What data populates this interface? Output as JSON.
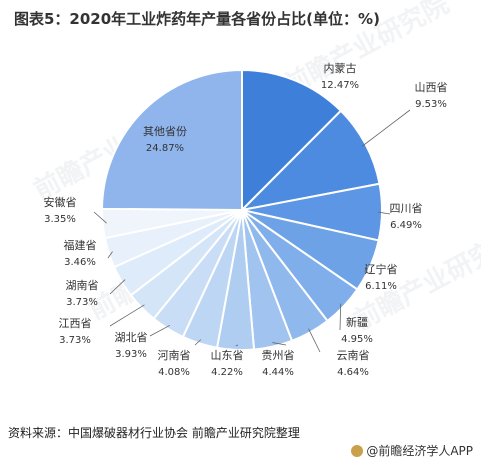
{
  "title": "图表5：2020年工业炸药年产量各省份占比(单位：%)",
  "source": "资料来源：中国爆破器材行业协会 前瞻产业研究院整理",
  "brand": "@前瞻经济学人APP",
  "watermark": "前瞻产业研究院",
  "chart_data": {
    "type": "pie",
    "unit": "%",
    "slices": [
      {
        "name": "内蒙古",
        "value": 12.47,
        "label": "12.47%",
        "color": "#3d7fd9"
      },
      {
        "name": "山西省",
        "value": 9.53,
        "label": "9.53%",
        "color": "#4d8be0"
      },
      {
        "name": "四川省",
        "value": 6.49,
        "label": "6.49%",
        "color": "#5d96e4"
      },
      {
        "name": "辽宁省",
        "value": 6.11,
        "label": "6.11%",
        "color": "#6ea2e7"
      },
      {
        "name": "新疆",
        "value": 4.95,
        "label": "4.95%",
        "color": "#80aeea"
      },
      {
        "name": "云南省",
        "value": 4.64,
        "label": "4.64%",
        "color": "#8fb8ec"
      },
      {
        "name": "贵州省",
        "value": 4.44,
        "label": "4.44%",
        "color": "#a0c3ef"
      },
      {
        "name": "山东省",
        "value": 4.22,
        "label": "4.22%",
        "color": "#aecdf1"
      },
      {
        "name": "河南省",
        "value": 4.08,
        "label": "4.08%",
        "color": "#bcd6f4"
      },
      {
        "name": "湖北省",
        "value": 3.93,
        "label": "3.93%",
        "color": "#c9def6"
      },
      {
        "name": "江西省",
        "value": 3.73,
        "label": "3.73%",
        "color": "#d4e5f8"
      },
      {
        "name": "湖南省",
        "value": 3.73,
        "label": "3.73%",
        "color": "#deebfa"
      },
      {
        "name": "福建省",
        "value": 3.46,
        "label": "3.46%",
        "color": "#e7f0fb"
      },
      {
        "name": "安徽省",
        "value": 3.35,
        "label": "3.35%",
        "color": "#f0f5fc"
      },
      {
        "name": "其他省份",
        "value": 24.87,
        "label": "24.87%",
        "color": "#8fb5ec"
      }
    ]
  }
}
